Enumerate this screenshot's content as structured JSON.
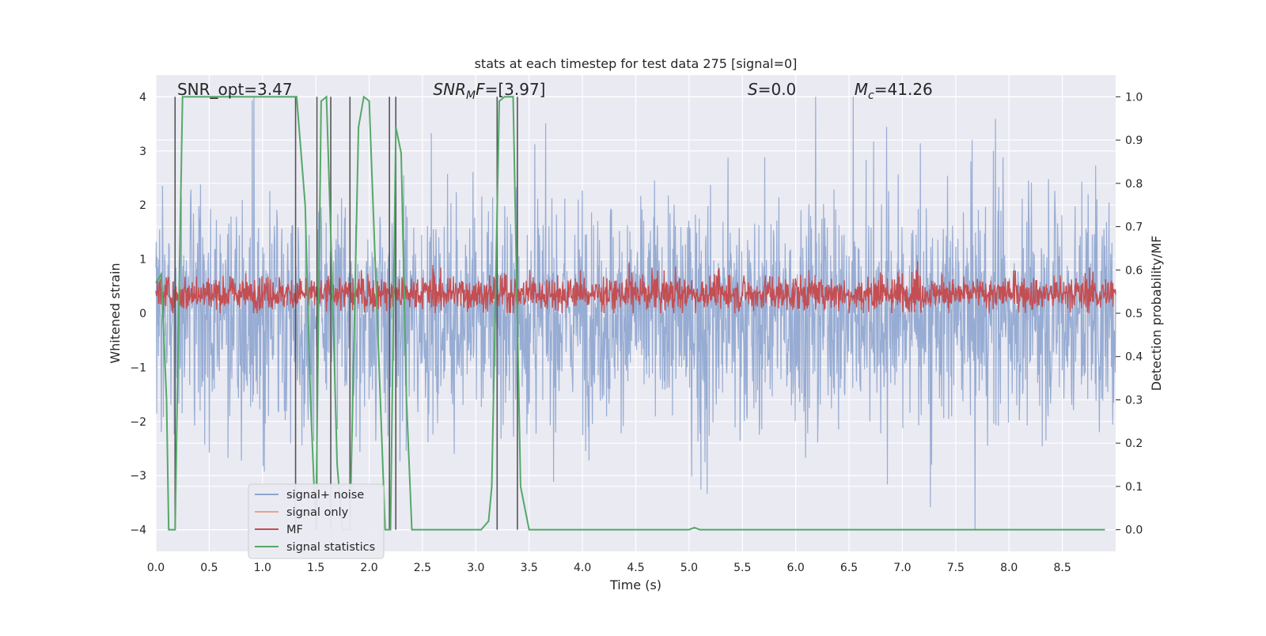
{
  "chart_data": {
    "type": "line",
    "title": "stats at each timestep for test data 275 [signal=0]",
    "xlabel": "Time (s)",
    "ylabel": "Whitened strain",
    "ylabel_right": "Detection probability/MF",
    "xlim": [
      0.0,
      9.0
    ],
    "ylim": [
      -4.4,
      4.4
    ],
    "ylim_right": [
      -0.05,
      1.05
    ],
    "x_ticks": [
      "0.0",
      "0.5",
      "1.0",
      "1.5",
      "2.0",
      "2.5",
      "3.0",
      "3.5",
      "4.0",
      "4.5",
      "5.0",
      "5.5",
      "6.0",
      "6.5",
      "7.0",
      "7.5",
      "8.0",
      "8.5"
    ],
    "y_ticks": [
      "4",
      "3",
      "2",
      "1",
      "0",
      "−1",
      "−2",
      "−3",
      "−4"
    ],
    "y_right_ticks": [
      "1.0",
      "0.9",
      "0.8",
      "0.7",
      "0.6",
      "0.5",
      "0.4",
      "0.3",
      "0.2",
      "0.1",
      "0.0"
    ],
    "grid": true,
    "legend_position": "lower-left",
    "annotations": [
      {
        "text": "SNR_opt=3.47",
        "x": 0.2
      },
      {
        "text": "=[3.97]",
        "math_base": "SNR",
        "math_sub": "M",
        "math_tail": "F",
        "x": 2.6
      },
      {
        "text": "=0.0",
        "math_base": "S",
        "x": 5.55
      },
      {
        "text": "=41.26",
        "math_base": "M",
        "math_sub": "c",
        "x": 6.55
      }
    ],
    "series": [
      {
        "name": "signal+ noise",
        "color": "#8ea5cf",
        "axis": "left",
        "description_values": {
          "dense_range": [
            -1.6,
            1.6
          ],
          "max_spike": 4.0,
          "min_spike": -4.0
        }
      },
      {
        "name": "signal only",
        "color": "#e9a487",
        "axis": "left",
        "values": []
      },
      {
        "name": "MF",
        "color": "#c44e52",
        "axis": "right",
        "typical_range": [
          0.5,
          0.61
        ]
      },
      {
        "name": "signal statistics",
        "color": "#55a868",
        "axis": "right",
        "x": [
          0.0,
          0.05,
          0.1,
          0.12,
          0.18,
          0.2,
          0.25,
          1.3,
          1.32,
          1.4,
          1.45,
          1.5,
          1.55,
          1.6,
          1.65,
          1.7,
          1.75,
          1.82,
          1.9,
          1.95,
          2.0,
          2.15,
          2.2,
          2.25,
          2.3,
          2.35,
          2.4,
          3.05,
          3.12,
          3.15,
          3.22,
          3.27,
          3.3,
          3.35,
          3.42,
          3.5,
          5.0,
          5.05,
          5.1,
          8.9
        ],
        "y": [
          0.57,
          0.59,
          0.3,
          0.0,
          0.0,
          0.3,
          1.0,
          1.0,
          1.0,
          0.75,
          0.3,
          0.0,
          0.99,
          1.0,
          0.6,
          0.15,
          0.0,
          0.0,
          0.93,
          1.0,
          0.99,
          0.0,
          0.0,
          0.93,
          0.87,
          0.3,
          0.0,
          0.0,
          0.02,
          0.1,
          0.99,
          1.0,
          1.0,
          1.0,
          0.1,
          0.0,
          0.0,
          0.005,
          0.0,
          0.0
        ]
      }
    ],
    "vertical_markers_x": [
      0.18,
      1.31,
      1.51,
      1.64,
      1.82,
      2.19,
      2.25,
      3.2,
      3.39
    ]
  }
}
